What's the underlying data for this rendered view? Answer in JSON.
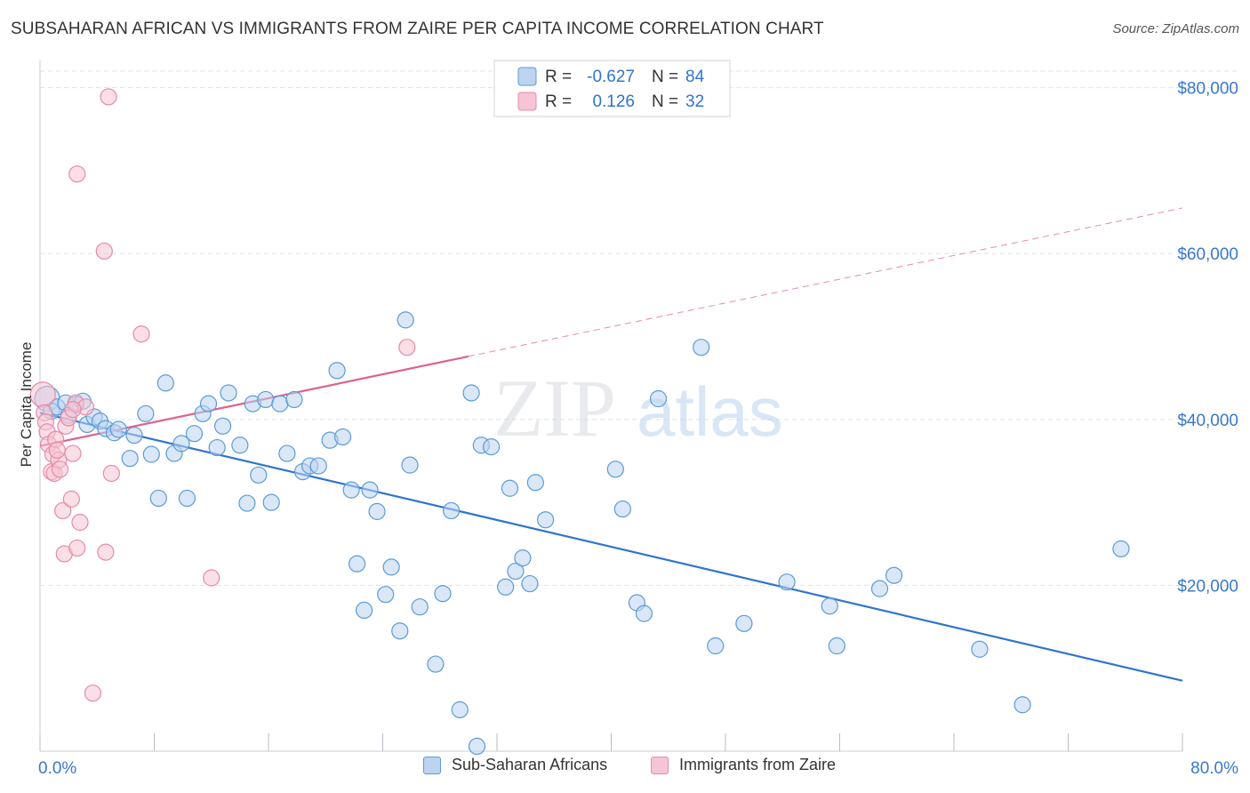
{
  "title": "SUBSAHARAN AFRICAN VS IMMIGRANTS FROM ZAIRE PER CAPITA INCOME CORRELATION CHART",
  "source": "Source: ZipAtlas.com",
  "watermark": {
    "zip": "ZIP",
    "atlas": "atlas"
  },
  "colors": {
    "blue": "#5b9bd5",
    "blue_fill": "#bcd4f0",
    "blue_line": "#2f74d0",
    "pink": "#e58aa8",
    "pink_fill": "#f6c5d4",
    "pink_line": "#e06090",
    "axis_text": "#3a78c9",
    "grid": "#dde1e8"
  },
  "legend_top": [
    {
      "r_label": "R =",
      "r_value": "-0.627",
      "n_label": "N =",
      "n_value": "84"
    },
    {
      "r_label": "R =",
      "r_value": "0.126",
      "n_label": "N =",
      "n_value": "32"
    }
  ],
  "chart_data": {
    "type": "scatter",
    "title": "SUBSAHARAN AFRICAN VS IMMIGRANTS FROM ZAIRE PER CAPITA INCOME CORRELATION CHART",
    "xlabel": "",
    "ylabel": "Per Capita Income",
    "xlim": [
      0,
      80
    ],
    "ylim": [
      0,
      82000
    ],
    "x_tick_labels": [
      "0.0%",
      "80.0%"
    ],
    "y_ticks": [
      20000,
      40000,
      60000,
      80000
    ],
    "y_tick_labels": [
      "$20,000",
      "$40,000",
      "$60,000",
      "$80,000"
    ],
    "grid": true,
    "legend_position": "bottom",
    "series": [
      {
        "name": "Sub-Saharan Africans",
        "color": "#5b9bd5",
        "r": -0.627,
        "n": 84,
        "trend": {
          "x": [
            0,
            80
          ],
          "y": [
            40800,
            8500
          ]
        },
        "points": [
          [
            0.5,
            42500
          ],
          [
            0.8,
            41000
          ],
          [
            1.2,
            41500
          ],
          [
            1.8,
            42000
          ],
          [
            2.0,
            40500
          ],
          [
            2.5,
            41800
          ],
          [
            3.0,
            42200
          ],
          [
            3.3,
            39400
          ],
          [
            3.8,
            40300
          ],
          [
            4.2,
            39800
          ],
          [
            4.6,
            38900
          ],
          [
            5.2,
            38400
          ],
          [
            5.5,
            38800
          ],
          [
            6.3,
            35300
          ],
          [
            6.6,
            38100
          ],
          [
            7.4,
            40700
          ],
          [
            7.8,
            35800
          ],
          [
            8.3,
            30500
          ],
          [
            8.8,
            44400
          ],
          [
            9.4,
            35900
          ],
          [
            9.9,
            37100
          ],
          [
            10.3,
            30500
          ],
          [
            10.8,
            38300
          ],
          [
            11.4,
            40700
          ],
          [
            11.8,
            41900
          ],
          [
            12.4,
            36600
          ],
          [
            12.8,
            39200
          ],
          [
            13.2,
            43200
          ],
          [
            14.0,
            36900
          ],
          [
            14.5,
            29900
          ],
          [
            14.9,
            41900
          ],
          [
            15.3,
            33300
          ],
          [
            15.8,
            42400
          ],
          [
            16.2,
            30000
          ],
          [
            16.8,
            41900
          ],
          [
            17.3,
            35900
          ],
          [
            17.8,
            42400
          ],
          [
            18.4,
            33700
          ],
          [
            18.9,
            34400
          ],
          [
            19.5,
            34400
          ],
          [
            20.3,
            37500
          ],
          [
            20.8,
            45900
          ],
          [
            21.2,
            37900
          ],
          [
            21.8,
            31500
          ],
          [
            22.2,
            22600
          ],
          [
            22.7,
            17000
          ],
          [
            23.1,
            31500
          ],
          [
            23.6,
            28900
          ],
          [
            24.2,
            18900
          ],
          [
            24.6,
            22200
          ],
          [
            25.2,
            14500
          ],
          [
            25.6,
            52000
          ],
          [
            25.9,
            34500
          ],
          [
            26.6,
            17400
          ],
          [
            27.7,
            10500
          ],
          [
            28.2,
            19000
          ],
          [
            28.8,
            29000
          ],
          [
            29.4,
            5000
          ],
          [
            30.2,
            43200
          ],
          [
            30.6,
            600
          ],
          [
            30.9,
            36900
          ],
          [
            31.6,
            36700
          ],
          [
            32.6,
            19800
          ],
          [
            32.9,
            31700
          ],
          [
            33.3,
            21700
          ],
          [
            33.8,
            23300
          ],
          [
            34.3,
            20200
          ],
          [
            34.7,
            32400
          ],
          [
            35.4,
            27900
          ],
          [
            40.3,
            34000
          ],
          [
            40.8,
            29200
          ],
          [
            41.8,
            17900
          ],
          [
            42.3,
            16600
          ],
          [
            43.3,
            42500
          ],
          [
            46.3,
            48700
          ],
          [
            47.3,
            12700
          ],
          [
            49.3,
            15400
          ],
          [
            52.3,
            20400
          ],
          [
            55.3,
            17500
          ],
          [
            55.8,
            12700
          ],
          [
            58.8,
            19600
          ],
          [
            59.8,
            21200
          ],
          [
            65.8,
            12300
          ],
          [
            68.8,
            5600
          ],
          [
            75.7,
            24400
          ]
        ]
      },
      {
        "name": "Immigrants from Zaire",
        "color": "#e58aa8",
        "r": 0.126,
        "n": 32,
        "trend": {
          "x": [
            0,
            30
          ],
          "y": [
            36800,
            47600
          ]
        },
        "trend_extension": {
          "x": [
            30,
            80
          ],
          "y": [
            47600,
            65500
          ]
        },
        "points": [
          [
            0.2,
            43000
          ],
          [
            0.3,
            40800
          ],
          [
            0.4,
            39700
          ],
          [
            0.5,
            38500
          ],
          [
            0.6,
            37000
          ],
          [
            0.8,
            33700
          ],
          [
            0.9,
            35800
          ],
          [
            1.0,
            33500
          ],
          [
            1.1,
            37600
          ],
          [
            1.3,
            35100
          ],
          [
            1.4,
            34000
          ],
          [
            1.6,
            29000
          ],
          [
            1.8,
            39200
          ],
          [
            2.0,
            40200
          ],
          [
            2.2,
            30400
          ],
          [
            2.3,
            35900
          ],
          [
            2.5,
            42000
          ],
          [
            2.6,
            69600
          ],
          [
            2.8,
            27600
          ],
          [
            3.2,
            41500
          ],
          [
            3.7,
            7000
          ],
          [
            4.5,
            60300
          ],
          [
            4.6,
            24000
          ],
          [
            4.8,
            78900
          ],
          [
            5.0,
            33500
          ],
          [
            7.1,
            50300
          ],
          [
            12.0,
            20900
          ],
          [
            25.7,
            48700
          ],
          [
            1.7,
            23800
          ],
          [
            2.6,
            24500
          ],
          [
            2.3,
            41200
          ],
          [
            1.2,
            36300
          ]
        ]
      }
    ]
  }
}
